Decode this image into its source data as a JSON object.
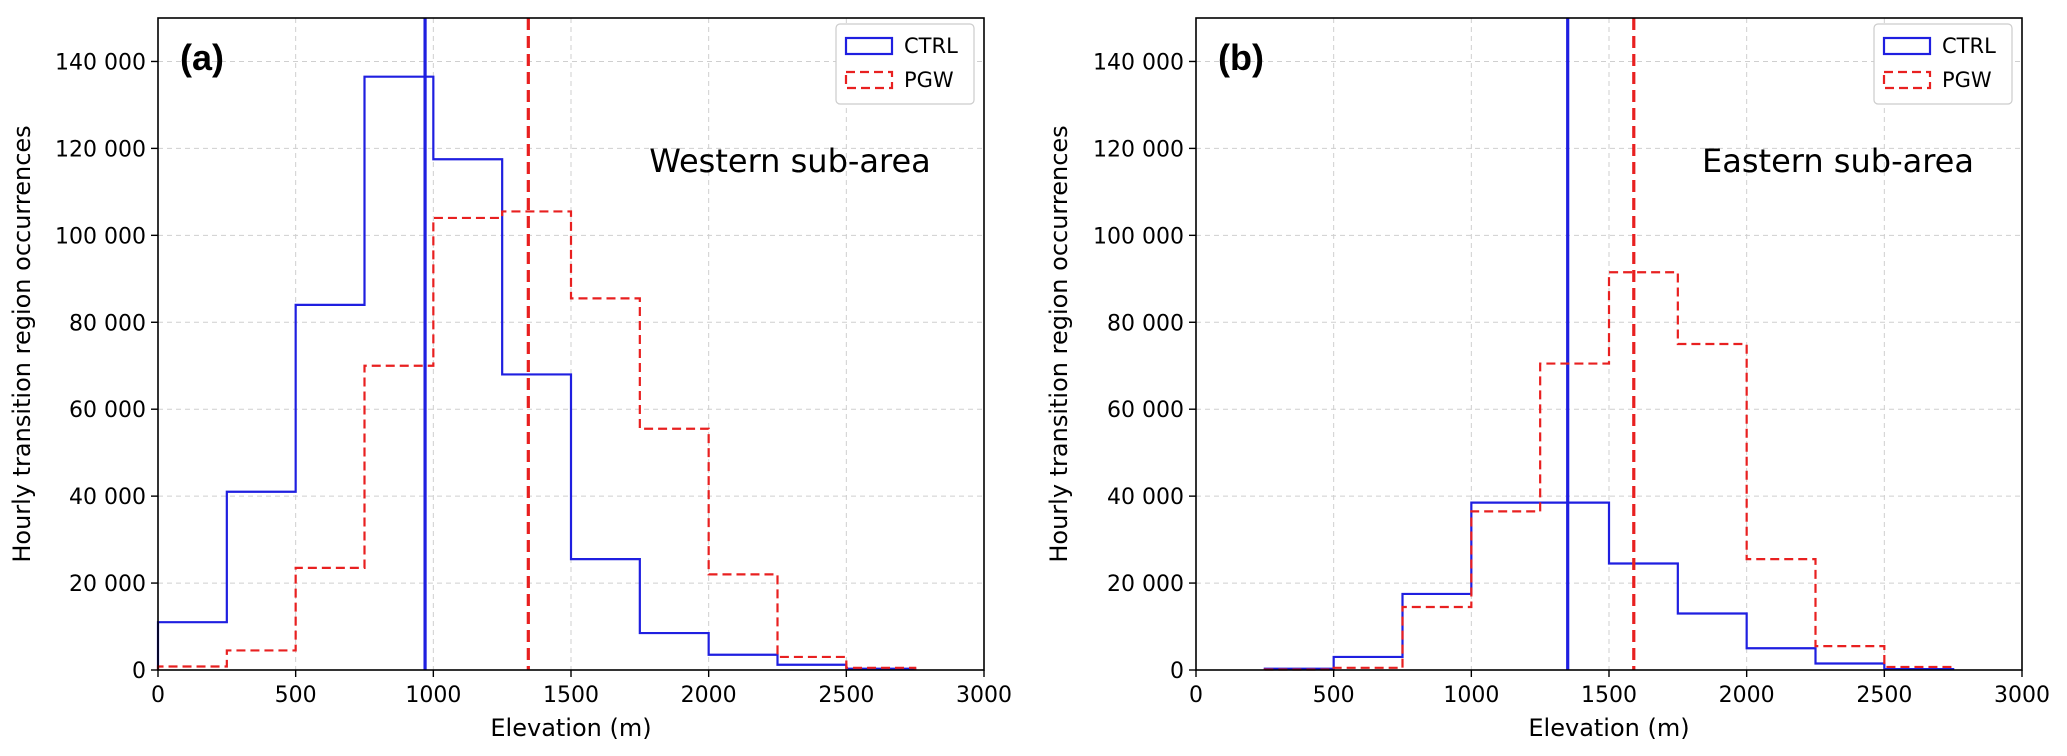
{
  "chart_data": [
    {
      "type": "histogram-step",
      "panel_label": "(a)",
      "annotation": "Western sub-area",
      "xlabel": "Elevation (m)",
      "ylabel": "Hourly transition region occurrences",
      "xlim": [
        0,
        3000
      ],
      "ylim": [
        0,
        150000
      ],
      "xticks": [
        0,
        500,
        1000,
        1500,
        2000,
        2500,
        3000
      ],
      "yticks": [
        0,
        20000,
        40000,
        60000,
        80000,
        100000,
        120000,
        140000
      ],
      "xtick_labels": [
        "0",
        "500",
        "1000",
        "1500",
        "2000",
        "2500",
        "3000"
      ],
      "ytick_labels": [
        "0",
        "20 000",
        "40 000",
        "60 000",
        "80 000",
        "100 000",
        "120 000",
        "140 000"
      ],
      "grid": true,
      "legend_position": "top-right",
      "bin_edges": [
        0,
        250,
        500,
        750,
        1000,
        1250,
        1500,
        1750,
        2000,
        2250,
        2500,
        2750
      ],
      "series": [
        {
          "name": "CTRL",
          "color": "#1f1fe0",
          "style": "solid",
          "values": [
            11000,
            41000,
            84000,
            136500,
            117500,
            68000,
            25500,
            8500,
            3500,
            1200,
            300
          ],
          "mean_line": 970
        },
        {
          "name": "PGW",
          "color": "#e82020",
          "style": "dashed",
          "values": [
            800,
            4500,
            23500,
            70000,
            104000,
            105500,
            85500,
            55500,
            22000,
            3000,
            500
          ],
          "mean_line": 1345
        }
      ]
    },
    {
      "type": "histogram-step",
      "panel_label": "(b)",
      "annotation": "Eastern sub-area",
      "xlabel": "Elevation (m)",
      "ylabel": "Hourly transition region occurrences",
      "xlim": [
        0,
        3000
      ],
      "ylim": [
        0,
        150000
      ],
      "xticks": [
        0,
        500,
        1000,
        1500,
        2000,
        2500,
        3000
      ],
      "yticks": [
        0,
        20000,
        40000,
        60000,
        80000,
        100000,
        120000,
        140000
      ],
      "xtick_labels": [
        "0",
        "500",
        "1000",
        "1500",
        "2000",
        "2500",
        "3000"
      ],
      "ytick_labels": [
        "0",
        "20 000",
        "40 000",
        "60 000",
        "80 000",
        "100 000",
        "120 000",
        "140 000"
      ],
      "grid": true,
      "legend_position": "top-right",
      "bin_edges": [
        250,
        500,
        750,
        1000,
        1250,
        1500,
        1750,
        2000,
        2250,
        2500,
        2750
      ],
      "series": [
        {
          "name": "CTRL",
          "color": "#1f1fe0",
          "style": "solid",
          "values": [
            300,
            3000,
            17500,
            38500,
            38500,
            24500,
            13000,
            5000,
            1500,
            200
          ],
          "mean_line": 1350
        },
        {
          "name": "PGW",
          "color": "#e82020",
          "style": "dashed",
          "values": [
            100,
            500,
            14500,
            36500,
            70500,
            91500,
            75000,
            25500,
            5500,
            700
          ],
          "mean_line": 1590
        }
      ]
    }
  ]
}
